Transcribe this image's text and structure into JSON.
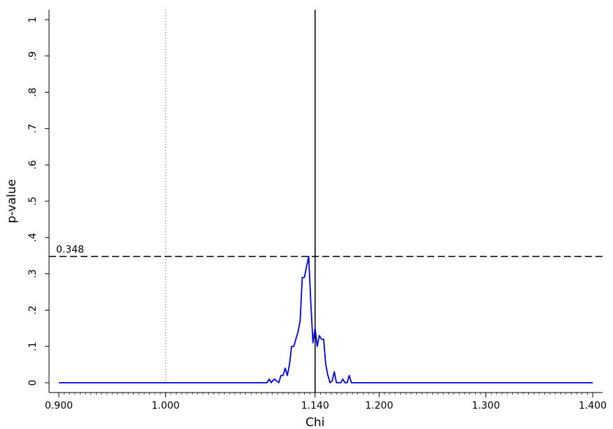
{
  "chart_data": {
    "type": "line",
    "xlabel": "Chi",
    "ylabel": "p-value",
    "xlim": [
      0.9,
      1.4
    ],
    "ylim": [
      0,
      1
    ],
    "x_ticks": [
      {
        "value": 0.9,
        "label": "0.900"
      },
      {
        "value": 1.0,
        "label": "1.000"
      },
      {
        "value": 1.14,
        "label": "1.140"
      },
      {
        "value": 1.2,
        "label": "1.200"
      },
      {
        "value": 1.3,
        "label": "1.300"
      },
      {
        "value": 1.4,
        "label": "1.400"
      }
    ],
    "y_ticks": [
      {
        "value": 0,
        "label": "0"
      },
      {
        "value": 0.1,
        "label": ".1"
      },
      {
        "value": 0.2,
        "label": ".2"
      },
      {
        "value": 0.3,
        "label": ".3"
      },
      {
        "value": 0.4,
        "label": ".4"
      },
      {
        "value": 0.5,
        "label": ".5"
      },
      {
        "value": 0.6,
        "label": ".6"
      },
      {
        "value": 0.7,
        "label": ".7"
      },
      {
        "value": 0.8,
        "label": ".8"
      },
      {
        "value": 0.9,
        "label": ".9"
      },
      {
        "value": 1,
        "label": "1"
      }
    ],
    "reference_lines": {
      "null_value_x": 1.0,
      "estimate_x": 1.14,
      "max_p_y": 0.348,
      "max_p_label": "0.348"
    },
    "series": [
      {
        "color": "#0000dd",
        "x": [
          0.9,
          1.095,
          1.097,
          1.099,
          1.1,
          1.102,
          1.104,
          1.106,
          1.108,
          1.11,
          1.112,
          1.114,
          1.116,
          1.118,
          1.12,
          1.122,
          1.124,
          1.126,
          1.128,
          1.13,
          1.132,
          1.134,
          1.136,
          1.138,
          1.14,
          1.142,
          1.144,
          1.146,
          1.148,
          1.15,
          1.152,
          1.154,
          1.156,
          1.158,
          1.16,
          1.162,
          1.164,
          1.166,
          1.168,
          1.17,
          1.172,
          1.174,
          1.176,
          1.178,
          1.18,
          1.182,
          1.184,
          1.186,
          1.188,
          1.19,
          1.192,
          1.194,
          1.4
        ],
        "y": [
          0,
          0,
          0.01,
          0,
          0.005,
          0.01,
          0.005,
          0,
          0.02,
          0.02,
          0.04,
          0.02,
          0.05,
          0.1,
          0.1,
          0.12,
          0.14,
          0.17,
          0.29,
          0.29,
          0.32,
          0.348,
          0.22,
          0.11,
          0.15,
          0.1,
          0.13,
          0.12,
          0.12,
          0.05,
          0.02,
          0,
          0.005,
          0.03,
          0,
          0,
          0,
          0.01,
          0,
          0,
          0.02,
          0,
          0,
          0,
          0,
          0,
          0,
          0,
          0,
          0,
          0,
          0,
          0
        ]
      }
    ]
  }
}
